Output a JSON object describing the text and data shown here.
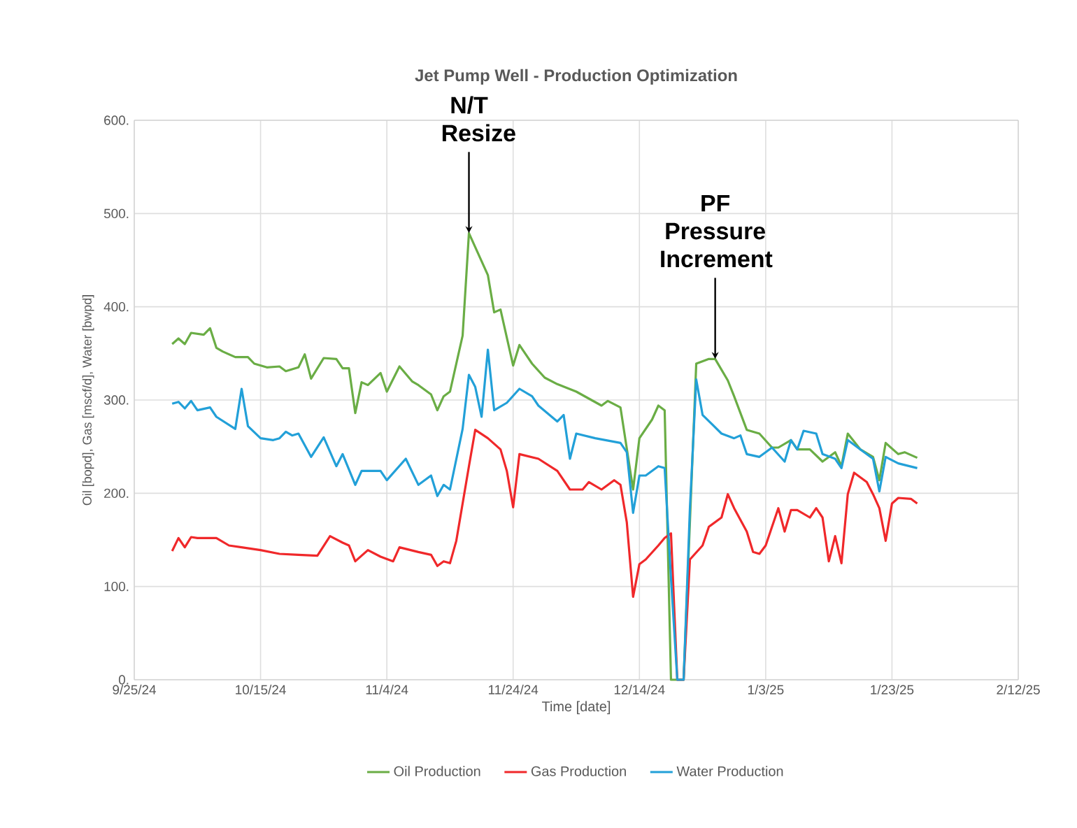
{
  "chart_data": {
    "type": "line",
    "title": "Jet Pump Well - Production Optimization",
    "xlabel": "Time [date]",
    "ylabel": "Oil [bopd], Gas [mscf/d], Water [bwpd]",
    "xlim": [
      "2024-09-25",
      "2025-02-12"
    ],
    "xticks": [
      {
        "value": "2024-09-25",
        "label": "9/25/24"
      },
      {
        "value": "2024-10-15",
        "label": "10/15/24"
      },
      {
        "value": "2024-11-04",
        "label": "11/4/24"
      },
      {
        "value": "2024-11-24",
        "label": "11/24/24"
      },
      {
        "value": "2024-12-14",
        "label": "12/14/24"
      },
      {
        "value": "2025-01-03",
        "label": "1/3/25"
      },
      {
        "value": "2025-01-23",
        "label": "1/23/25"
      },
      {
        "value": "2025-02-12",
        "label": "2/12/25"
      }
    ],
    "ylim": [
      0,
      600
    ],
    "yticks": [
      {
        "value": 0,
        "label": "0."
      },
      {
        "value": 100,
        "label": "100."
      },
      {
        "value": 200,
        "label": "200."
      },
      {
        "value": 300,
        "label": "300."
      },
      {
        "value": 400,
        "label": "400."
      },
      {
        "value": 500,
        "label": "500."
      },
      {
        "value": 600,
        "label": "600."
      }
    ],
    "grid": true,
    "legend": "bottom",
    "marker": "none",
    "line_style": "solid",
    "annotations": [
      {
        "text": "N/T Resize",
        "x": "2024-11-17",
        "y": 479
      },
      {
        "text": "PF Pressure Increment",
        "x": "2024-12-26",
        "y": 344
      }
    ],
    "series": [
      {
        "name": "Oil Production",
        "color": "#6aad45",
        "x": [
          "2024-10-01",
          "2024-10-02",
          "2024-10-03",
          "2024-10-04",
          "2024-10-06",
          "2024-10-07",
          "2024-10-08",
          "2024-10-09",
          "2024-10-11",
          "2024-10-13",
          "2024-10-14",
          "2024-10-16",
          "2024-10-18",
          "2024-10-19",
          "2024-10-21",
          "2024-10-22",
          "2024-10-23",
          "2024-10-25",
          "2024-10-27",
          "2024-10-28",
          "2024-10-29",
          "2024-10-30",
          "2024-10-31",
          "2024-11-01",
          "2024-11-03",
          "2024-11-04",
          "2024-11-06",
          "2024-11-08",
          "2024-11-09",
          "2024-11-11",
          "2024-11-12",
          "2024-11-13",
          "2024-11-14",
          "2024-11-16",
          "2024-11-17",
          "2024-11-18",
          "2024-11-20",
          "2024-11-21",
          "2024-11-22",
          "2024-11-24",
          "2024-11-25",
          "2024-11-27",
          "2024-11-29",
          "2024-12-01",
          "2024-12-04",
          "2024-12-08",
          "2024-12-09",
          "2024-12-11",
          "2024-12-13",
          "2024-12-14",
          "2024-12-16",
          "2024-12-17",
          "2024-12-18",
          "2024-12-19",
          "2024-12-21",
          "2024-12-23",
          "2024-12-25",
          "2024-12-26",
          "2024-12-28",
          "2024-12-29",
          "2024-12-31",
          "2025-01-02",
          "2025-01-04",
          "2025-01-05",
          "2025-01-07",
          "2025-01-08",
          "2025-01-10",
          "2025-01-12",
          "2025-01-14",
          "2025-01-15",
          "2025-01-16",
          "2025-01-18",
          "2025-01-20",
          "2025-01-21",
          "2025-01-22",
          "2025-01-24",
          "2025-01-25",
          "2025-01-27"
        ],
        "values": [
          360,
          366,
          360,
          372,
          370,
          377,
          356,
          352,
          346,
          346,
          339,
          335,
          336,
          331,
          335,
          349,
          323,
          345,
          344,
          334,
          334,
          286,
          319,
          316,
          329,
          309,
          336,
          320,
          316,
          306,
          289,
          304,
          309,
          369,
          479,
          464,
          434,
          394,
          397,
          337,
          359,
          339,
          324,
          317,
          309,
          294,
          299,
          292,
          204,
          259,
          279,
          294,
          289,
          0,
          0,
          339,
          344,
          344,
          321,
          304,
          268,
          264,
          249,
          249,
          257,
          247,
          247,
          234,
          244,
          229,
          264,
          247,
          239,
          214,
          254,
          242,
          244,
          238
        ]
      },
      {
        "name": "Gas Production",
        "color": "#f0282a",
        "x": [
          "2024-10-01",
          "2024-10-02",
          "2024-10-03",
          "2024-10-04",
          "2024-10-05",
          "2024-10-08",
          "2024-10-10",
          "2024-10-12",
          "2024-10-15",
          "2024-10-18",
          "2024-10-21",
          "2024-10-24",
          "2024-10-26",
          "2024-10-28",
          "2024-10-29",
          "2024-10-30",
          "2024-11-01",
          "2024-11-03",
          "2024-11-05",
          "2024-11-06",
          "2024-11-09",
          "2024-11-11",
          "2024-11-12",
          "2024-11-13",
          "2024-11-14",
          "2024-11-15",
          "2024-11-17",
          "2024-11-18",
          "2024-11-20",
          "2024-11-22",
          "2024-11-23",
          "2024-11-24",
          "2024-11-25",
          "2024-11-28",
          "2024-12-01",
          "2024-12-03",
          "2024-12-05",
          "2024-12-06",
          "2024-12-08",
          "2024-12-10",
          "2024-12-11",
          "2024-12-12",
          "2024-12-13",
          "2024-12-14",
          "2024-12-15",
          "2024-12-17",
          "2024-12-18",
          "2024-12-19",
          "2024-12-20",
          "2024-12-21",
          "2024-12-22",
          "2024-12-24",
          "2024-12-25",
          "2024-12-27",
          "2024-12-28",
          "2024-12-29",
          "2024-12-31",
          "2025-01-01",
          "2025-01-02",
          "2025-01-03",
          "2025-01-04",
          "2025-01-05",
          "2025-01-06",
          "2025-01-07",
          "2025-01-08",
          "2025-01-10",
          "2025-01-11",
          "2025-01-12",
          "2025-01-13",
          "2025-01-14",
          "2025-01-15",
          "2025-01-16",
          "2025-01-17",
          "2025-01-19",
          "2025-01-20",
          "2025-01-21",
          "2025-01-22",
          "2025-01-23",
          "2025-01-24",
          "2025-01-26",
          "2025-01-27"
        ],
        "values": [
          138,
          152,
          142,
          153,
          152,
          152,
          144,
          142,
          139,
          135,
          134,
          133,
          154,
          147,
          144,
          127,
          139,
          132,
          127,
          142,
          137,
          134,
          122,
          127,
          125,
          149,
          229,
          268,
          259,
          247,
          224,
          185,
          242,
          237,
          224,
          204,
          204,
          212,
          204,
          214,
          209,
          169,
          89,
          124,
          129,
          144,
          152,
          157,
          0,
          0,
          129,
          144,
          164,
          174,
          199,
          184,
          159,
          137,
          135,
          144,
          164,
          184,
          159,
          182,
          182,
          174,
          184,
          174,
          127,
          154,
          125,
          199,
          222,
          212,
          199,
          184,
          149,
          189,
          195,
          194,
          189
        ]
      },
      {
        "name": "Water Production",
        "color": "#22a0d8",
        "x": [
          "2024-10-01",
          "2024-10-02",
          "2024-10-03",
          "2024-10-04",
          "2024-10-05",
          "2024-10-07",
          "2024-10-08",
          "2024-10-11",
          "2024-10-12",
          "2024-10-13",
          "2024-10-15",
          "2024-10-17",
          "2024-10-18",
          "2024-10-19",
          "2024-10-20",
          "2024-10-21",
          "2024-10-23",
          "2024-10-25",
          "2024-10-27",
          "2024-10-28",
          "2024-10-30",
          "2024-10-31",
          "2024-11-03",
          "2024-11-04",
          "2024-11-07",
          "2024-11-09",
          "2024-11-11",
          "2024-11-12",
          "2024-11-13",
          "2024-11-14",
          "2024-11-16",
          "2024-11-17",
          "2024-11-18",
          "2024-11-19",
          "2024-11-20",
          "2024-11-21",
          "2024-11-23",
          "2024-11-25",
          "2024-11-27",
          "2024-11-28",
          "2024-12-01",
          "2024-12-02",
          "2024-12-03",
          "2024-12-04",
          "2024-12-07",
          "2024-12-11",
          "2024-12-12",
          "2024-12-13",
          "2024-12-14",
          "2024-12-15",
          "2024-12-17",
          "2024-12-18",
          "2024-12-19",
          "2024-12-20",
          "2024-12-21",
          "2024-12-22",
          "2024-12-23",
          "2024-12-24",
          "2024-12-27",
          "2024-12-29",
          "2024-12-30",
          "2024-12-31",
          "2025-01-02",
          "2025-01-04",
          "2025-01-06",
          "2025-01-07",
          "2025-01-08",
          "2025-01-09",
          "2025-01-11",
          "2025-01-12",
          "2025-01-14",
          "2025-01-15",
          "2025-01-16",
          "2025-01-18",
          "2025-01-20",
          "2025-01-21",
          "2025-01-22",
          "2025-01-24",
          "2025-01-27"
        ],
        "values": [
          296,
          298,
          291,
          299,
          289,
          292,
          282,
          269,
          312,
          272,
          259,
          257,
          259,
          266,
          262,
          264,
          239,
          260,
          229,
          242,
          209,
          224,
          224,
          214,
          237,
          209,
          219,
          197,
          209,
          204,
          269,
          327,
          314,
          282,
          354,
          289,
          297,
          312,
          304,
          294,
          277,
          284,
          237,
          264,
          259,
          254,
          244,
          179,
          219,
          219,
          229,
          227,
          109,
          0,
          0,
          184,
          322,
          284,
          264,
          259,
          262,
          242,
          239,
          249,
          234,
          257,
          247,
          267,
          264,
          242,
          237,
          227,
          257,
          247,
          237,
          202,
          239,
          232,
          227
        ]
      }
    ]
  }
}
